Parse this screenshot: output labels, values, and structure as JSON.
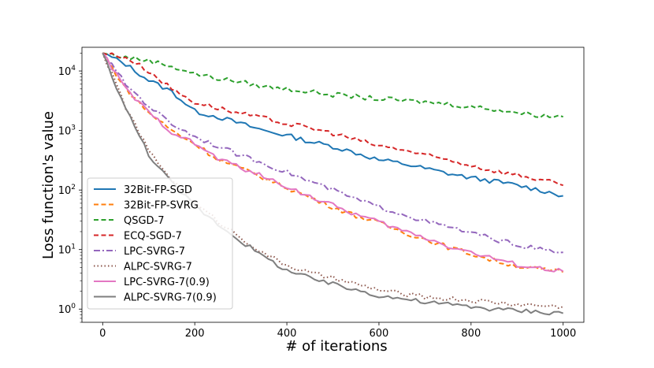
{
  "chart_data": {
    "type": "line",
    "xlabel": "# of iterations",
    "ylabel": "Loss function's value",
    "xlim": [
      -45,
      1045
    ],
    "ylim": [
      0.6,
      25000
    ],
    "yscale": "log",
    "x_ticks": [
      0,
      200,
      400,
      600,
      800,
      1000
    ],
    "x_tick_labels": [
      "0",
      "200",
      "400",
      "600",
      "800",
      "1000"
    ],
    "y_ticks": [
      1,
      10,
      100,
      1000,
      10000
    ],
    "y_tick_labels": [
      {
        "base": "10",
        "exp": "0"
      },
      {
        "base": "10",
        "exp": "1"
      },
      {
        "base": "10",
        "exp": "2"
      },
      {
        "base": "10",
        "exp": "3"
      },
      {
        "base": "10",
        "exp": "4"
      }
    ],
    "legend_position": "lower-left",
    "series": [
      {
        "name": "32Bit-FP-SGD",
        "color": "#1f77b4",
        "dash": "solid",
        "x": [
          0,
          50,
          100,
          150,
          200,
          250,
          300,
          350,
          400,
          450,
          500,
          550,
          600,
          650,
          700,
          750,
          800,
          850,
          900,
          950,
          1000
        ],
        "values": [
          20000,
          13000,
          7000,
          4500,
          2100,
          1700,
          1300,
          1000,
          830,
          650,
          540,
          420,
          320,
          280,
          230,
          190,
          160,
          140,
          120,
          100,
          80
        ]
      },
      {
        "name": "32Bit-FP-SVRG",
        "color": "#ff7f0e",
        "dash": "dashed",
        "x": [
          0,
          50,
          100,
          150,
          200,
          250,
          300,
          350,
          400,
          450,
          500,
          550,
          600,
          650,
          700,
          750,
          800,
          850,
          900,
          950,
          1000
        ],
        "values": [
          20000,
          5000,
          2000,
          1000,
          600,
          330,
          230,
          160,
          110,
          75,
          52,
          37,
          28,
          20,
          15,
          11,
          8.5,
          6.5,
          5.3,
          4.6,
          4.2
        ]
      },
      {
        "name": "QSGD-7",
        "color": "#2ca02c",
        "dash": "dashed",
        "x": [
          0,
          50,
          100,
          150,
          200,
          250,
          300,
          350,
          400,
          450,
          500,
          550,
          600,
          650,
          700,
          750,
          800,
          850,
          900,
          950,
          1000
        ],
        "values": [
          20000,
          17000,
          15000,
          12000,
          9000,
          7500,
          6500,
          5500,
          5000,
          4500,
          4000,
          3700,
          3400,
          3200,
          3000,
          2800,
          2500,
          2300,
          2000,
          1800,
          1700
        ]
      },
      {
        "name": "ECQ-SGD-7",
        "color": "#d62728",
        "dash": "dashed",
        "x": [
          0,
          50,
          100,
          150,
          200,
          250,
          300,
          350,
          400,
          450,
          500,
          550,
          600,
          650,
          700,
          750,
          800,
          850,
          900,
          950,
          1000
        ],
        "values": [
          20000,
          17000,
          10000,
          5000,
          3000,
          2400,
          1900,
          1600,
          1300,
          1100,
          900,
          700,
          550,
          480,
          380,
          320,
          260,
          210,
          180,
          150,
          120
        ]
      },
      {
        "name": "LPC-SVRG-7",
        "color": "#9467bd",
        "dash": "dashdot",
        "x": [
          0,
          50,
          100,
          150,
          200,
          250,
          300,
          350,
          400,
          450,
          500,
          550,
          600,
          650,
          700,
          750,
          800,
          850,
          900,
          950,
          1000
        ],
        "values": [
          20000,
          6000,
          2600,
          1300,
          800,
          550,
          380,
          280,
          200,
          140,
          100,
          70,
          52,
          40,
          30,
          24,
          19,
          15,
          12,
          10,
          9
        ]
      },
      {
        "name": "ALPC-SVRG-7",
        "color": "#8c564b",
        "dash": "dotted",
        "x": [
          0,
          50,
          100,
          150,
          200,
          250,
          300,
          350,
          400,
          450,
          500,
          550,
          600,
          650,
          700,
          750,
          800,
          850,
          900,
          950,
          1000
        ],
        "values": [
          20000,
          2500,
          450,
          150,
          60,
          30,
          16,
          8.5,
          5.5,
          4,
          3.3,
          2.6,
          2.1,
          1.8,
          1.6,
          1.5,
          1.4,
          1.3,
          1.2,
          1.15,
          1.1
        ]
      },
      {
        "name": "LPC-SVRG-7(0.9)",
        "color": "#e377c2",
        "dash": "solid",
        "x": [
          0,
          50,
          100,
          150,
          200,
          250,
          300,
          350,
          400,
          450,
          500,
          550,
          600,
          650,
          700,
          750,
          800,
          850,
          900,
          950,
          1000
        ],
        "values": [
          20000,
          5000,
          2000,
          950,
          600,
          340,
          240,
          165,
          115,
          78,
          55,
          39,
          29,
          21,
          16,
          11.5,
          9,
          7,
          5.6,
          4.8,
          4.3
        ]
      },
      {
        "name": "ALPC-SVRG-7(0.9)",
        "color": "#7f7f7f",
        "dash": "solid",
        "x": [
          0,
          50,
          100,
          150,
          200,
          250,
          300,
          350,
          400,
          450,
          500,
          550,
          600,
          650,
          700,
          750,
          800,
          850,
          900,
          950,
          1000
        ],
        "values": [
          20000,
          2300,
          400,
          130,
          55,
          27,
          14,
          7.5,
          4.5,
          3.3,
          2.6,
          2.1,
          1.7,
          1.5,
          1.3,
          1.2,
          1.1,
          1.0,
          0.95,
          0.9,
          0.85
        ]
      }
    ]
  }
}
